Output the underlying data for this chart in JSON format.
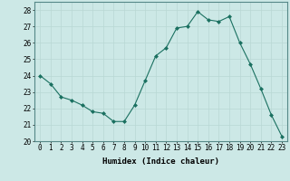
{
  "x": [
    0,
    1,
    2,
    3,
    4,
    5,
    6,
    7,
    8,
    9,
    10,
    11,
    12,
    13,
    14,
    15,
    16,
    17,
    18,
    19,
    20,
    21,
    22,
    23
  ],
  "y": [
    24.0,
    23.5,
    22.7,
    22.5,
    22.2,
    21.8,
    21.7,
    21.2,
    21.2,
    22.2,
    23.7,
    25.2,
    25.7,
    26.9,
    27.0,
    27.9,
    27.4,
    27.3,
    27.6,
    26.0,
    24.7,
    23.2,
    21.6,
    20.3
  ],
  "xlabel": "Humidex (Indice chaleur)",
  "ylim": [
    20,
    28.5
  ],
  "yticks": [
    20,
    21,
    22,
    23,
    24,
    25,
    26,
    27,
    28
  ],
  "xticks": [
    0,
    1,
    2,
    3,
    4,
    5,
    6,
    7,
    8,
    9,
    10,
    11,
    12,
    13,
    14,
    15,
    16,
    17,
    18,
    19,
    20,
    21,
    22,
    23
  ],
  "line_color": "#1a7060",
  "marker": "D",
  "marker_size": 2.0,
  "bg_color": "#cce8e6",
  "grid_color": "#b8d8d4",
  "label_fontsize": 6.5,
  "tick_fontsize": 5.5
}
